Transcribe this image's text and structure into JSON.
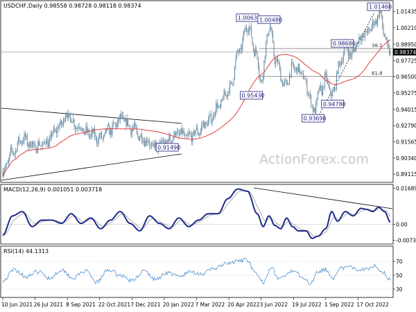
{
  "chart_data": [
    {
      "type": "candlestick",
      "title": "USDCHF,Daily  0.98558 0.98728 0.98118 0.98374",
      "ylim": [
        0.886,
        1.021
      ],
      "yticks": [
        "1.01435",
        "1.00210",
        "0.98950",
        "0.97725",
        "0.96500",
        "0.95275",
        "0.94015",
        "0.92790",
        "0.91565",
        "0.90340",
        "0.89115"
      ],
      "current_price": "0.98374",
      "x_labels": [
        "10 Jun 2021",
        "26 Jul 2021",
        "8 Sep 2021",
        "22 Oct 2021",
        "7 Dec 2021",
        "20 Jan 2022",
        "7 Mar 2022",
        "20 Apr 2022",
        "3 Jun 2022",
        "19 Jul 2022",
        "1 Sep 2022",
        "17 Oct 2022"
      ],
      "x_label_positions": [
        0,
        33,
        66,
        99,
        132,
        165,
        198,
        231,
        264,
        297,
        330,
        363
      ],
      "annotations": [
        {
          "label": "1.00630",
          "bar": 250,
          "value": 1.0063
        },
        {
          "label": "1.00480",
          "bar": 272,
          "value": 1.0048
        },
        {
          "label": "1.01460",
          "bar": 385,
          "value": 1.0146
        },
        {
          "label": "0.98680",
          "bar": 347,
          "value": 0.9868
        },
        {
          "label": "0.95430",
          "bar": 254,
          "value": 0.9543
        },
        {
          "label": "0.94780",
          "bar": 337,
          "value": 0.9478
        },
        {
          "label": "0.93690",
          "bar": 317,
          "value": 0.9369
        },
        {
          "label": "0.91490",
          "bar": 168,
          "value": 0.9149
        }
      ],
      "fibo_levels": [
        {
          "label": "61.8",
          "value": 0.9652
        },
        {
          "label": "38.2",
          "value": 0.9863
        }
      ],
      "price_keypoints": [
        [
          0,
          0.893
        ],
        [
          10,
          0.908
        ],
        [
          20,
          0.918
        ],
        [
          33,
          0.912
        ],
        [
          45,
          0.915
        ],
        [
          55,
          0.925
        ],
        [
          66,
          0.936
        ],
        [
          75,
          0.928
        ],
        [
          88,
          0.922
        ],
        [
          99,
          0.918
        ],
        [
          110,
          0.925
        ],
        [
          121,
          0.933
        ],
        [
          132,
          0.926
        ],
        [
          143,
          0.918
        ],
        [
          155,
          0.912
        ],
        [
          165,
          0.915
        ],
        [
          180,
          0.922
        ],
        [
          190,
          0.919
        ],
        [
          198,
          0.923
        ],
        [
          210,
          0.931
        ],
        [
          220,
          0.942
        ],
        [
          231,
          0.955
        ],
        [
          242,
          0.985
        ],
        [
          250,
          1.004
        ],
        [
          258,
          0.985
        ],
        [
          264,
          0.962
        ],
        [
          272,
          1.002
        ],
        [
          280,
          0.975
        ],
        [
          288,
          0.958
        ],
        [
          297,
          0.972
        ],
        [
          305,
          0.968
        ],
        [
          312,
          0.955
        ],
        [
          317,
          0.939
        ],
        [
          325,
          0.955
        ],
        [
          330,
          0.963
        ],
        [
          337,
          0.95
        ],
        [
          343,
          0.972
        ],
        [
          350,
          0.987
        ],
        [
          357,
          0.982
        ],
        [
          363,
          0.993
        ],
        [
          372,
          0.998
        ],
        [
          378,
          1.004
        ],
        [
          385,
          1.013
        ],
        [
          390,
          0.998
        ],
        [
          393,
          0.985
        ],
        [
          396,
          0.984
        ]
      ]
    },
    {
      "type": "line",
      "title": "MACD(12,26,9) 0.001051 0.003718",
      "ylim": [
        -0.0085,
        0.018
      ],
      "yticks": [
        "0.016893",
        "0.00",
        "-0.007393"
      ],
      "macd_keypoints": [
        [
          0,
          -0.005
        ],
        [
          10,
          0.004
        ],
        [
          20,
          0.006
        ],
        [
          30,
          -0.001
        ],
        [
          40,
          0.002
        ],
        [
          50,
          0.002
        ],
        [
          60,
          0.0005
        ],
        [
          70,
          0.005
        ],
        [
          80,
          0.0005
        ],
        [
          90,
          0.003
        ],
        [
          100,
          -0.002
        ],
        [
          110,
          0.002
        ],
        [
          120,
          0.006
        ],
        [
          130,
          0.0005
        ],
        [
          140,
          -0.003
        ],
        [
          150,
          0.004
        ],
        [
          160,
          0.0005
        ],
        [
          170,
          -0.002
        ],
        [
          180,
          0.003
        ],
        [
          190,
          -0.001
        ],
        [
          200,
          0.002
        ],
        [
          210,
          0.005
        ],
        [
          220,
          0.005
        ],
        [
          230,
          0.012
        ],
        [
          240,
          0.0165
        ],
        [
          250,
          0.0155
        ],
        [
          260,
          0.005
        ],
        [
          266,
          -0.001
        ],
        [
          272,
          0.004
        ],
        [
          278,
          -0.0005
        ],
        [
          284,
          -0.002
        ],
        [
          290,
          0.003
        ],
        [
          296,
          -0.001
        ],
        [
          302,
          -0.003
        ],
        [
          310,
          -0.003
        ],
        [
          316,
          -0.0065
        ],
        [
          322,
          -0.0055
        ],
        [
          330,
          -0.002
        ],
        [
          336,
          0.006
        ],
        [
          342,
          0.0015
        ],
        [
          350,
          0.006
        ],
        [
          358,
          0.004
        ],
        [
          366,
          0.0075
        ],
        [
          372,
          0.007
        ],
        [
          378,
          0.006
        ],
        [
          384,
          0.008
        ],
        [
          390,
          0.006
        ],
        [
          396,
          0.0011
        ]
      ]
    },
    {
      "type": "line",
      "title": "RSI(14) 44.1313",
      "ylim": [
        20,
        90
      ],
      "yticks": [
        "70",
        "50",
        "30"
      ],
      "rsi_keypoints": [
        [
          0,
          42
        ],
        [
          12,
          58
        ],
        [
          24,
          48
        ],
        [
          36,
          55
        ],
        [
          48,
          46
        ],
        [
          60,
          58
        ],
        [
          72,
          46
        ],
        [
          84,
          56
        ],
        [
          96,
          40
        ],
        [
          108,
          58
        ],
        [
          120,
          50
        ],
        [
          132,
          42
        ],
        [
          144,
          56
        ],
        [
          156,
          44
        ],
        [
          168,
          54
        ],
        [
          180,
          48
        ],
        [
          192,
          55
        ],
        [
          204,
          52
        ],
        [
          216,
          60
        ],
        [
          228,
          66
        ],
        [
          240,
          70
        ],
        [
          250,
          72
        ],
        [
          258,
          52
        ],
        [
          266,
          40
        ],
        [
          274,
          62
        ],
        [
          282,
          45
        ],
        [
          290,
          50
        ],
        [
          298,
          58
        ],
        [
          306,
          48
        ],
        [
          314,
          38
        ],
        [
          322,
          56
        ],
        [
          330,
          58
        ],
        [
          338,
          46
        ],
        [
          346,
          60
        ],
        [
          354,
          62
        ],
        [
          362,
          58
        ],
        [
          372,
          60
        ],
        [
          380,
          64
        ],
        [
          388,
          55
        ],
        [
          396,
          44
        ]
      ]
    }
  ],
  "watermark": "ActionForex.com",
  "colors": {
    "bull_candle": "#5a8aa8",
    "bear_candle": "#6f8898",
    "ma_line": "#e23b3b",
    "macd_line": "#1c2a8a",
    "signal_line": "#9a9a9a",
    "rsi_line": "#4a8fd0",
    "annotation_border": "#1a1a7a",
    "trend_line": "#000000"
  }
}
